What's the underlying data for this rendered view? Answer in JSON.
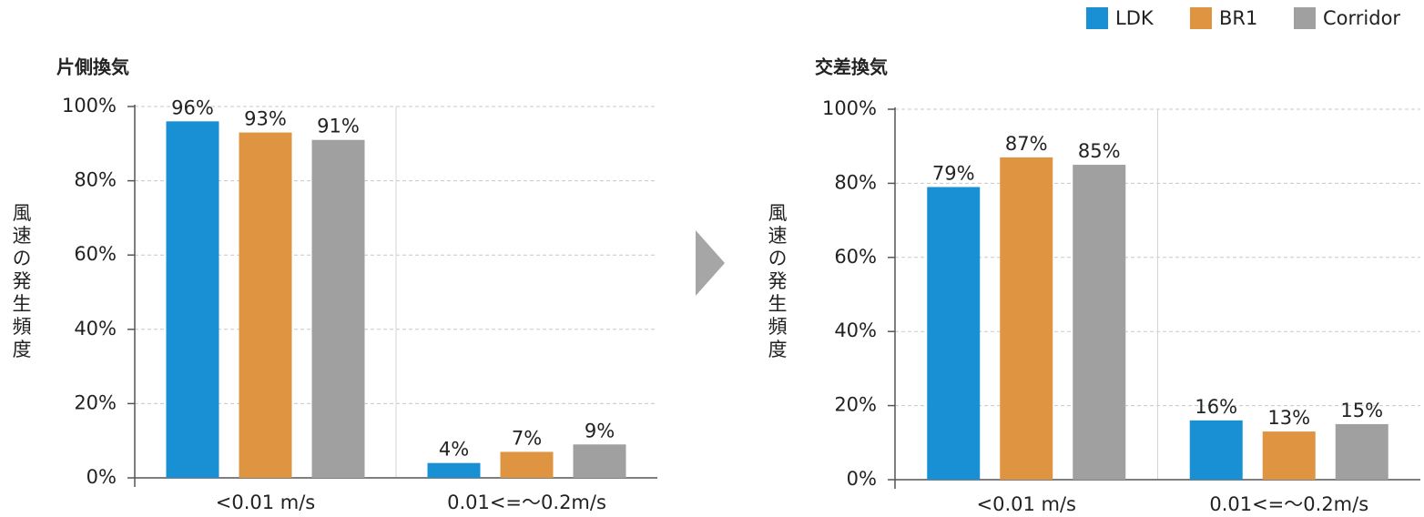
{
  "chart_data": [
    {
      "type": "bar",
      "title": "片側換気",
      "y_label": "風速の発生頻度",
      "categories": [
        "<0.01 m/s",
        "0.01<=〜0.2m/s"
      ],
      "series": [
        {
          "name": "LDK",
          "color": "#1a90d4",
          "values": [
            96,
            4
          ],
          "value_labels": [
            "96%",
            "4%"
          ]
        },
        {
          "name": "BR1",
          "color": "#de9440",
          "values": [
            93,
            7
          ],
          "value_labels": [
            "93%",
            "7%"
          ]
        },
        {
          "name": "Corridor",
          "color": "#a0a0a0",
          "values": [
            91,
            9
          ],
          "value_labels": [
            "91%",
            "9%"
          ]
        }
      ],
      "ylim": [
        0,
        100
      ],
      "yticks": [
        {
          "value": 0,
          "label": "0%"
        },
        {
          "value": 20,
          "label": "20%"
        },
        {
          "value": 40,
          "label": "40%"
        },
        {
          "value": 60,
          "label": "60%"
        },
        {
          "value": 80,
          "label": "80%"
        },
        {
          "value": 100,
          "label": "100%"
        }
      ],
      "grid": true,
      "legend": "top-right"
    },
    {
      "type": "bar",
      "title": "交差換気",
      "y_label": "風速の発生頻度",
      "categories": [
        "<0.01 m/s",
        "0.01<=〜0.2m/s"
      ],
      "series": [
        {
          "color": "#1a90d4",
          "values": [
            79,
            16
          ],
          "value_labels": [
            "79%",
            "16%"
          ]
        },
        {
          "color": "#de9440",
          "values": [
            87,
            13
          ],
          "value_labels": [
            "87%",
            "13%"
          ]
        },
        {
          "color": "#a0a0a0",
          "values": [
            85,
            15
          ],
          "value_labels": [
            "85%",
            "15%"
          ]
        }
      ],
      "ylim": [
        0,
        100
      ],
      "yticks": [
        {
          "value": 0,
          "label": "0%"
        },
        {
          "value": 20,
          "label": "20%"
        },
        {
          "value": 40,
          "label": "40%"
        },
        {
          "value": 60,
          "label": "60%"
        },
        {
          "value": 80,
          "label": "80%"
        },
        {
          "value": 100,
          "label": "100%"
        }
      ],
      "grid": true
    }
  ]
}
